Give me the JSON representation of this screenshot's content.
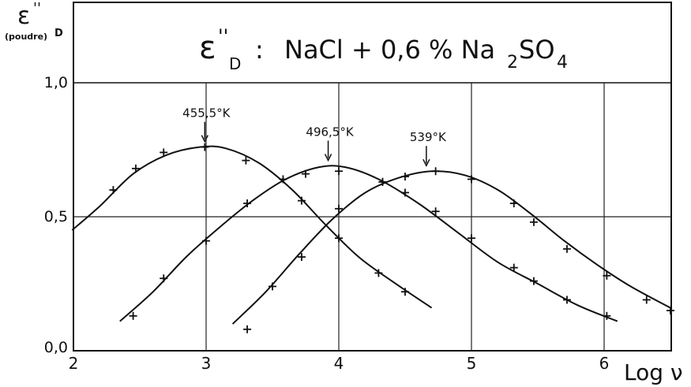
{
  "chart_data": {
    "type": "line",
    "title": "ε''D : NaCl + 0,6 % Na2SO4",
    "title_parts": {
      "symbol": "ε",
      "primes": "''",
      "subscript": "D",
      "separator": ":",
      "formula_main": "NaCl + 0,6 % Na",
      "formula_sub1": "2",
      "formula_mid": "SO",
      "formula_sub2": "4"
    },
    "ylabel": {
      "symbol": "ε",
      "primes": "''",
      "subscript_left": "(poudre)",
      "subscript_right": "D"
    },
    "xlabel": "Log ν",
    "xlim": [
      2,
      6.5
    ],
    "ylim": [
      0,
      1.0
    ],
    "x_ticks": [
      2,
      3,
      4,
      5,
      6
    ],
    "x_tick_labels": [
      "2",
      "3",
      "4",
      "5",
      "6"
    ],
    "y_ticks": [
      0,
      0.5,
      1.0
    ],
    "y_tick_labels": [
      "0,0",
      "0,5",
      "1,0"
    ],
    "grid": true,
    "series": [
      {
        "name": "455,5°K",
        "peak": [
          2.99,
          0.76
        ],
        "points": [
          [
            2.3,
            0.6
          ],
          [
            2.47,
            0.68
          ],
          [
            2.68,
            0.74
          ],
          [
            2.99,
            0.76
          ],
          [
            3.3,
            0.71
          ],
          [
            3.58,
            0.64
          ],
          [
            3.72,
            0.56
          ],
          [
            4.0,
            0.42
          ],
          [
            4.3,
            0.29
          ],
          [
            4.5,
            0.22
          ]
        ],
        "curve": [
          [
            1.99,
            0.45
          ],
          [
            2.2,
            0.54
          ],
          [
            2.45,
            0.66
          ],
          [
            2.7,
            0.73
          ],
          [
            2.95,
            0.76
          ],
          [
            3.15,
            0.755
          ],
          [
            3.4,
            0.7
          ],
          [
            3.65,
            0.6
          ],
          [
            3.9,
            0.47
          ],
          [
            4.15,
            0.35
          ],
          [
            4.4,
            0.26
          ],
          [
            4.7,
            0.16
          ]
        ]
      },
      {
        "name": "496,5°K",
        "peak": [
          3.92,
          0.69
        ],
        "points": [
          [
            2.45,
            0.13
          ],
          [
            2.68,
            0.27
          ],
          [
            3.0,
            0.41
          ],
          [
            3.31,
            0.55
          ],
          [
            3.75,
            0.66
          ],
          [
            4.0,
            0.67
          ],
          [
            4.33,
            0.63
          ],
          [
            4.5,
            0.59
          ],
          [
            4.73,
            0.52
          ],
          [
            5.0,
            0.42
          ],
          [
            5.32,
            0.31
          ],
          [
            5.47,
            0.26
          ],
          [
            5.72,
            0.19
          ],
          [
            6.02,
            0.13
          ]
        ],
        "curve": [
          [
            2.35,
            0.11
          ],
          [
            2.6,
            0.22
          ],
          [
            2.85,
            0.35
          ],
          [
            3.1,
            0.46
          ],
          [
            3.35,
            0.56
          ],
          [
            3.6,
            0.64
          ],
          [
            3.85,
            0.685
          ],
          [
            4.05,
            0.685
          ],
          [
            4.3,
            0.64
          ],
          [
            4.6,
            0.55
          ],
          [
            4.9,
            0.44
          ],
          [
            5.2,
            0.33
          ],
          [
            5.5,
            0.25
          ],
          [
            5.8,
            0.17
          ],
          [
            6.1,
            0.11
          ]
        ]
      },
      {
        "name": "539°K",
        "peak": [
          4.66,
          0.67
        ],
        "points": [
          [
            3.31,
            0.08
          ],
          [
            3.5,
            0.24
          ],
          [
            3.72,
            0.35
          ],
          [
            4.0,
            0.53
          ],
          [
            4.33,
            0.63
          ],
          [
            4.5,
            0.65
          ],
          [
            4.73,
            0.67
          ],
          [
            5.0,
            0.64
          ],
          [
            5.32,
            0.55
          ],
          [
            5.47,
            0.48
          ],
          [
            5.72,
            0.38
          ],
          [
            6.02,
            0.28
          ],
          [
            6.32,
            0.19
          ],
          [
            6.5,
            0.15
          ]
        ],
        "curve": [
          [
            3.2,
            0.1
          ],
          [
            3.45,
            0.22
          ],
          [
            3.7,
            0.36
          ],
          [
            3.95,
            0.49
          ],
          [
            4.2,
            0.59
          ],
          [
            4.45,
            0.645
          ],
          [
            4.7,
            0.67
          ],
          [
            4.95,
            0.655
          ],
          [
            5.2,
            0.6
          ],
          [
            5.45,
            0.51
          ],
          [
            5.7,
            0.41
          ],
          [
            5.95,
            0.32
          ],
          [
            6.2,
            0.24
          ],
          [
            6.5,
            0.16
          ]
        ]
      }
    ]
  }
}
